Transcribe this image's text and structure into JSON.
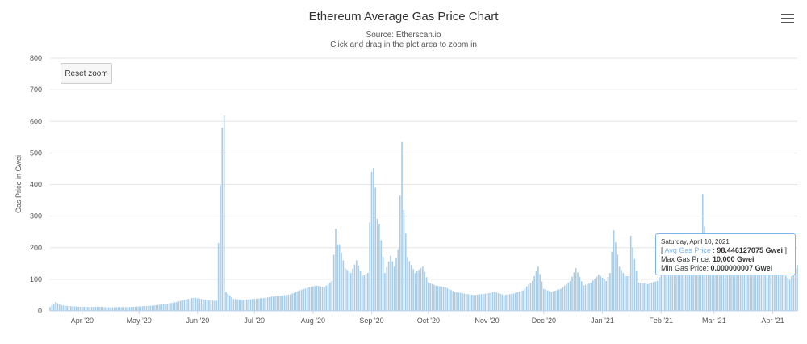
{
  "header": {
    "title": "Ethereum Average Gas Price Chart",
    "source": "Source: Etherscan.io",
    "hint": "Click and drag in the plot area to zoom in",
    "reset_zoom_label": "Reset zoom",
    "menu_icon": "hamburger-menu-icon"
  },
  "tooltip": {
    "date": "Saturday, April 10, 2021",
    "open_bracket": "[ ",
    "series_label": "Avg Gas Price",
    "avg_sep": " : ",
    "avg_value": "98.446127075 Gwei",
    "close_bracket": " ]",
    "max_label": "Max Gas Price: ",
    "max_value": "10,000 Gwei",
    "min_label": "Min Gas Price: ",
    "min_value": "0.000000007 Gwei"
  },
  "colors": {
    "bar": "#a9cde8",
    "grid": "#e6e6e6",
    "tooltip_border": "#7cb5ec"
  },
  "chart_data": {
    "type": "bar",
    "title": "Ethereum Average Gas Price Chart",
    "subtitle": "Source: Etherscan.io",
    "xlabel": "",
    "ylabel": "Gas Price in Gwei",
    "ylim": [
      0,
      800
    ],
    "yticks": [
      0,
      100,
      200,
      300,
      400,
      500,
      600,
      700,
      800
    ],
    "x_start": "2020-03-15",
    "x_end": "2021-04-14",
    "xtick_labels": [
      {
        "date": "2020-04-01",
        "label": "Apr '20"
      },
      {
        "date": "2020-05-01",
        "label": "May '20"
      },
      {
        "date": "2020-06-01",
        "label": "Jun '20"
      },
      {
        "date": "2020-07-01",
        "label": "Jul '20"
      },
      {
        "date": "2020-08-01",
        "label": "Aug '20"
      },
      {
        "date": "2020-09-01",
        "label": "Sep '20"
      },
      {
        "date": "2020-10-01",
        "label": "Oct '20"
      },
      {
        "date": "2020-11-01",
        "label": "Nov '20"
      },
      {
        "date": "2020-12-01",
        "label": "Dec '20"
      },
      {
        "date": "2021-01-01",
        "label": "Jan '21"
      },
      {
        "date": "2021-02-01",
        "label": "Feb '21"
      },
      {
        "date": "2021-03-01",
        "label": "Mar '21"
      },
      {
        "date": "2021-04-01",
        "label": "Apr '21"
      }
    ],
    "grid": true,
    "legend": "none",
    "series": [
      {
        "name": "Avg Gas Price",
        "points": [
          [
            "2020-03-15",
            12
          ],
          [
            "2020-03-18",
            28
          ],
          [
            "2020-03-21",
            18
          ],
          [
            "2020-03-25",
            15
          ],
          [
            "2020-03-28",
            14
          ],
          [
            "2020-04-01",
            13
          ],
          [
            "2020-04-05",
            12
          ],
          [
            "2020-04-10",
            13
          ],
          [
            "2020-04-15",
            11
          ],
          [
            "2020-04-20",
            12
          ],
          [
            "2020-04-25",
            12
          ],
          [
            "2020-05-01",
            14
          ],
          [
            "2020-05-05",
            15
          ],
          [
            "2020-05-10",
            18
          ],
          [
            "2020-05-15",
            22
          ],
          [
            "2020-05-20",
            27
          ],
          [
            "2020-05-25",
            35
          ],
          [
            "2020-05-30",
            42
          ],
          [
            "2020-06-03",
            38
          ],
          [
            "2020-06-07",
            33
          ],
          [
            "2020-06-11",
            32
          ],
          [
            "2020-06-14",
            580
          ],
          [
            "2020-06-15",
            705
          ],
          [
            "2020-06-16",
            60
          ],
          [
            "2020-06-20",
            38
          ],
          [
            "2020-06-25",
            35
          ],
          [
            "2020-07-01",
            38
          ],
          [
            "2020-07-05",
            40
          ],
          [
            "2020-07-10",
            45
          ],
          [
            "2020-07-15",
            48
          ],
          [
            "2020-07-20",
            52
          ],
          [
            "2020-07-25",
            65
          ],
          [
            "2020-07-30",
            75
          ],
          [
            "2020-08-03",
            80
          ],
          [
            "2020-08-07",
            75
          ],
          [
            "2020-08-11",
            95
          ],
          [
            "2020-08-13",
            260
          ],
          [
            "2020-08-15",
            210
          ],
          [
            "2020-08-18",
            135
          ],
          [
            "2020-08-21",
            120
          ],
          [
            "2020-08-24",
            160
          ],
          [
            "2020-08-27",
            110
          ],
          [
            "2020-08-30",
            120
          ],
          [
            "2020-09-01",
            440
          ],
          [
            "2020-09-02",
            480
          ],
          [
            "2020-09-03",
            390
          ],
          [
            "2020-09-05",
            275
          ],
          [
            "2020-09-08",
            120
          ],
          [
            "2020-09-11",
            175
          ],
          [
            "2020-09-13",
            140
          ],
          [
            "2020-09-15",
            195
          ],
          [
            "2020-09-17",
            535
          ],
          [
            "2020-09-18",
            320
          ],
          [
            "2020-09-20",
            170
          ],
          [
            "2020-09-24",
            120
          ],
          [
            "2020-09-28",
            140
          ],
          [
            "2020-10-01",
            90
          ],
          [
            "2020-10-05",
            80
          ],
          [
            "2020-10-10",
            75
          ],
          [
            "2020-10-15",
            60
          ],
          [
            "2020-10-20",
            55
          ],
          [
            "2020-10-25",
            50
          ],
          [
            "2020-11-01",
            55
          ],
          [
            "2020-11-05",
            60
          ],
          [
            "2020-11-10",
            50
          ],
          [
            "2020-11-15",
            55
          ],
          [
            "2020-11-20",
            65
          ],
          [
            "2020-11-25",
            95
          ],
          [
            "2020-11-28",
            140
          ],
          [
            "2020-12-01",
            70
          ],
          [
            "2020-12-05",
            60
          ],
          [
            "2020-12-10",
            70
          ],
          [
            "2020-12-15",
            95
          ],
          [
            "2020-12-18",
            135
          ],
          [
            "2020-12-22",
            80
          ],
          [
            "2020-12-26",
            90
          ],
          [
            "2020-12-30",
            115
          ],
          [
            "2021-01-03",
            95
          ],
          [
            "2021-01-05",
            120
          ],
          [
            "2021-01-07",
            255
          ],
          [
            "2021-01-10",
            140
          ],
          [
            "2021-01-13",
            110
          ],
          [
            "2021-01-16",
            238
          ],
          [
            "2021-01-20",
            90
          ],
          [
            "2021-01-25",
            85
          ],
          [
            "2021-01-30",
            95
          ],
          [
            "2021-02-03",
            140
          ],
          [
            "2021-02-06",
            130
          ],
          [
            "2021-02-10",
            140
          ],
          [
            "2021-02-15",
            160
          ],
          [
            "2021-02-20",
            170
          ],
          [
            "2021-02-23",
            370
          ],
          [
            "2021-02-25",
            165
          ],
          [
            "2021-03-01",
            140
          ],
          [
            "2021-03-10",
            145
          ],
          [
            "2021-03-20",
            140
          ],
          [
            "2021-03-30",
            145
          ],
          [
            "2021-04-05",
            130
          ],
          [
            "2021-04-10",
            98
          ],
          [
            "2021-04-14",
            145
          ]
        ]
      }
    ]
  }
}
